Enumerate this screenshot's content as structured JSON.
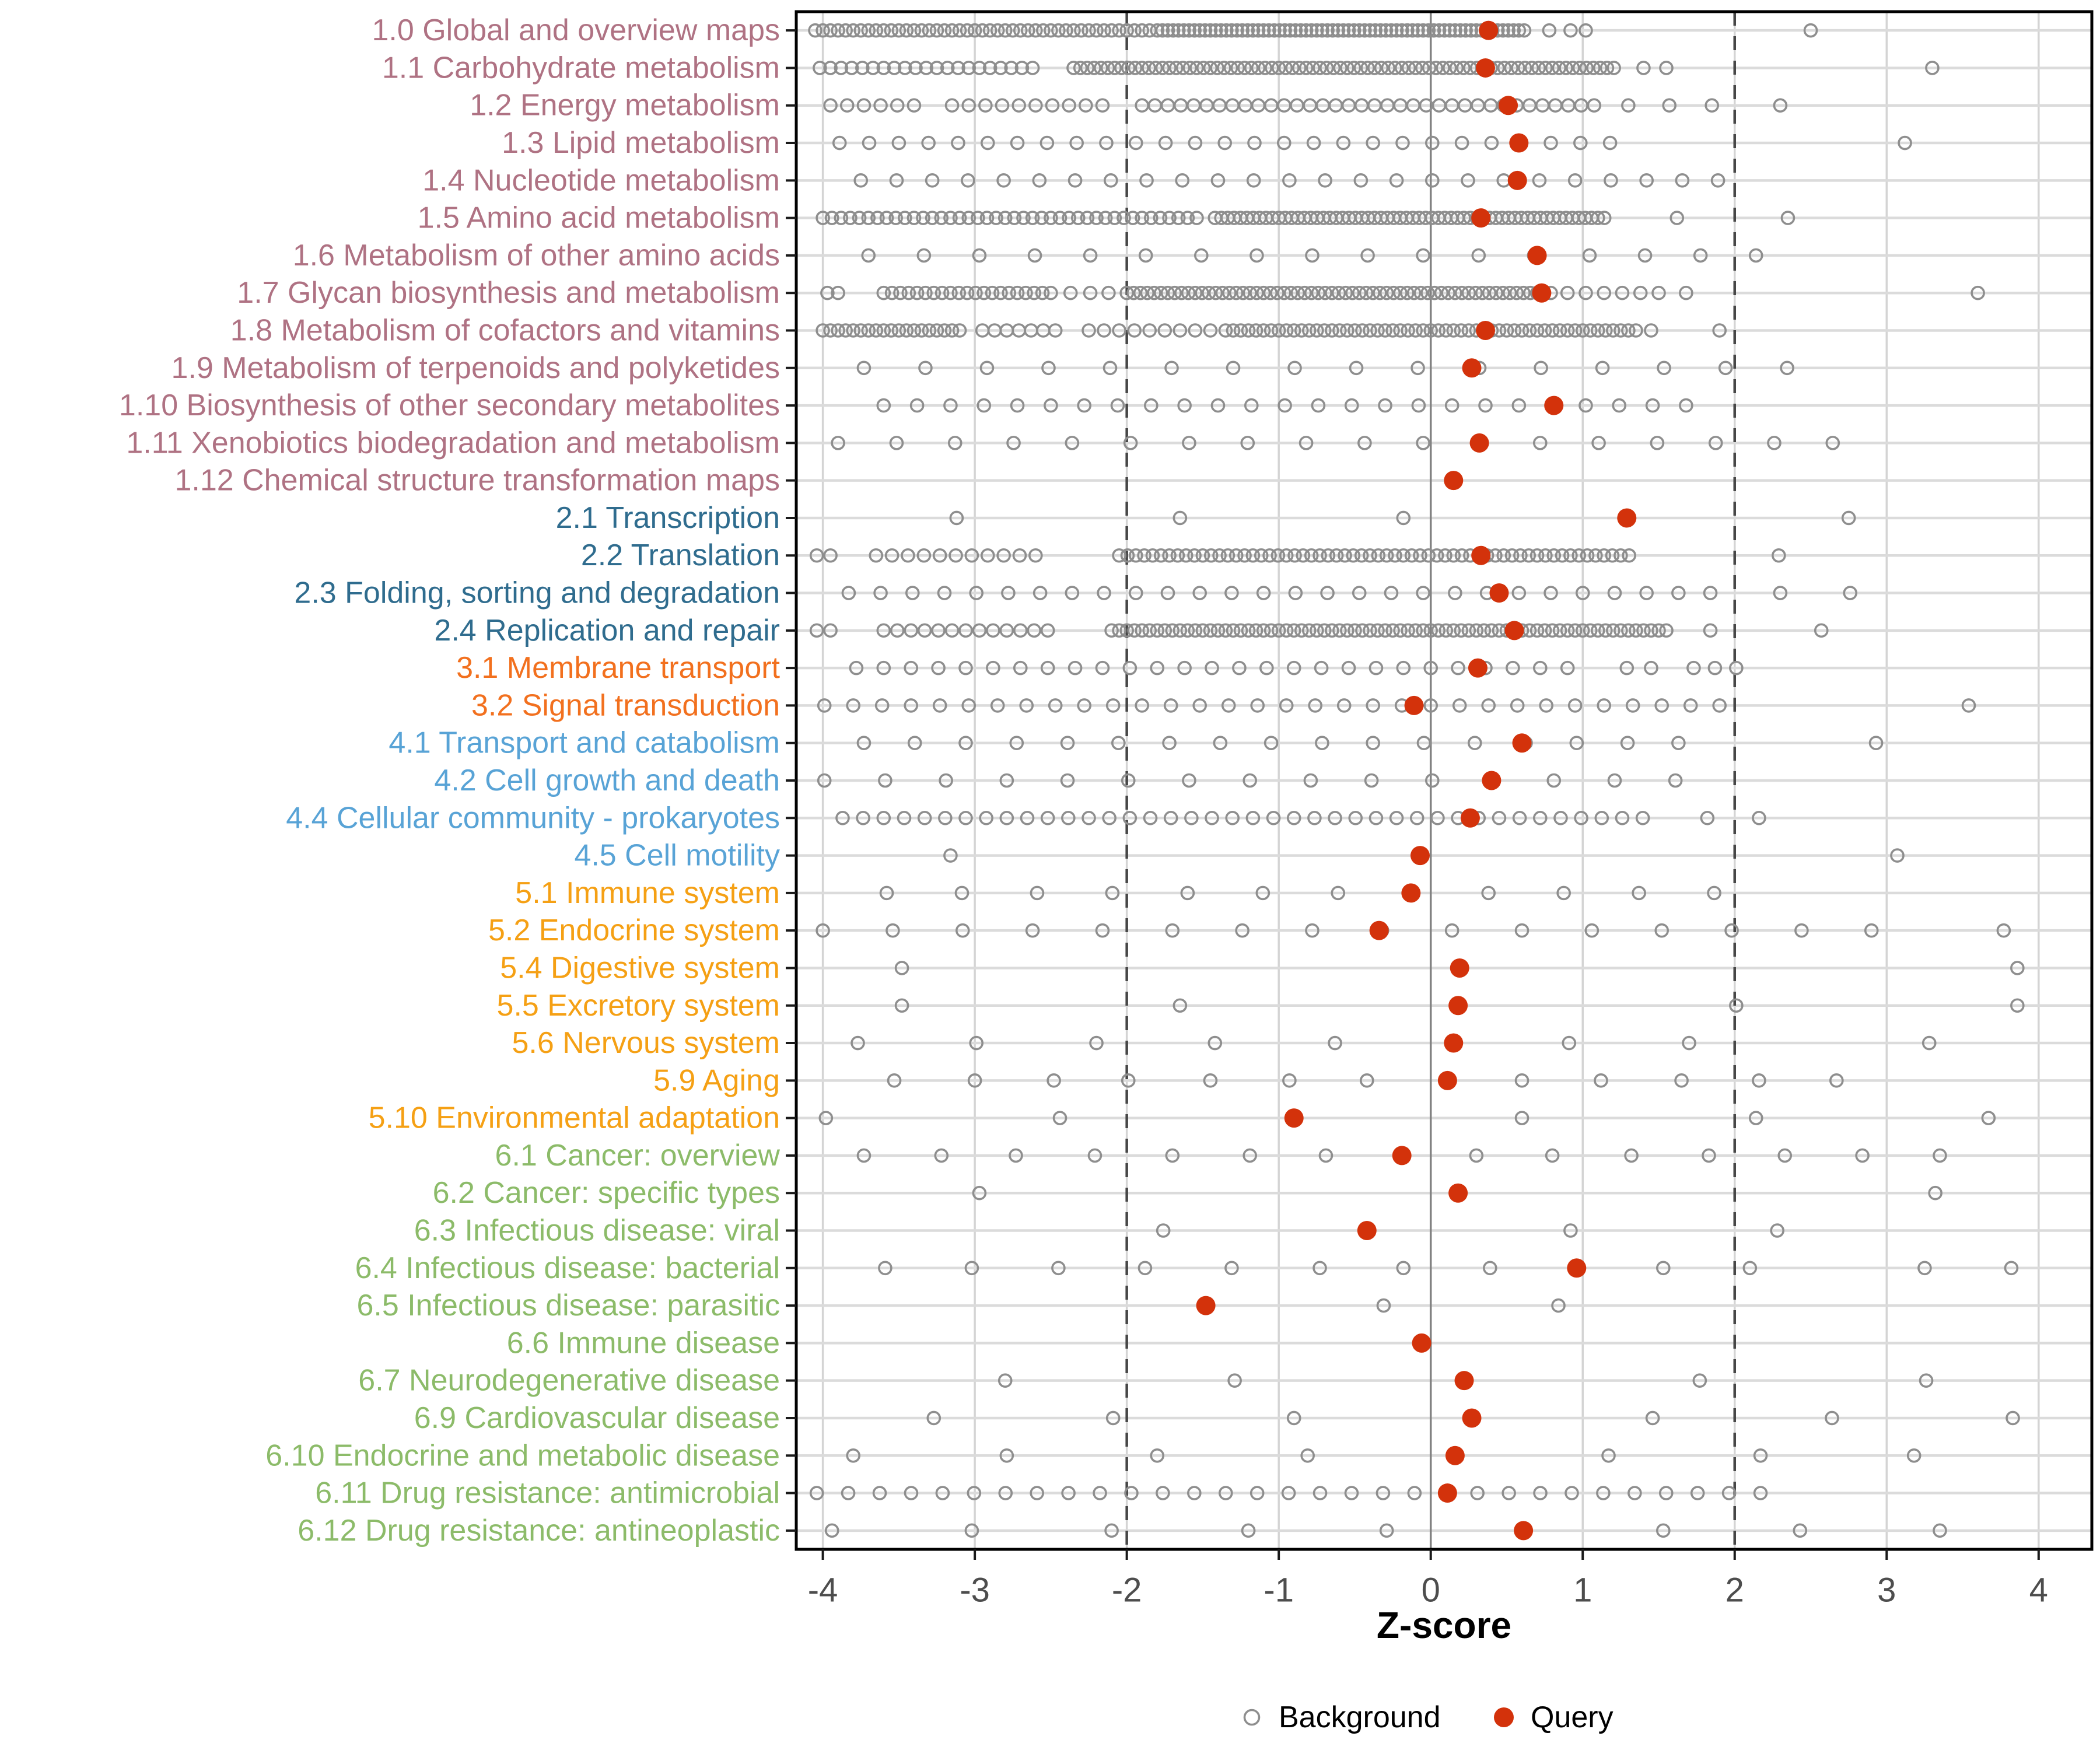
{
  "chart_data": {
    "type": "scatter",
    "title": "",
    "xlabel": "Z-score",
    "ylabel": "",
    "x_ticks": [
      -4,
      -3,
      -2,
      -1,
      0,
      1,
      2,
      3,
      4
    ],
    "xlim": [
      -4.175,
      4.35
    ],
    "zero_line": 0,
    "dashed_reference_lines": [
      -2,
      2
    ],
    "grid": true,
    "legend_position": "bottom",
    "legend": [
      {
        "label": "Background",
        "marker": "open-circle",
        "color": "#8E8E8E"
      },
      {
        "label": "Query",
        "marker": "filled-circle",
        "color": "#D3320B"
      }
    ],
    "point_colors": {
      "background": "#8E8E8E",
      "query": "#D3320B"
    },
    "category_colors": {
      "1": "#AF7283",
      "2": "#2F6C8E",
      "3": "#F2701E",
      "4": "#58A3D6",
      "5": "#F5A014",
      "6": "#8CBB69"
    },
    "rows": [
      {
        "label": "1.0 Global and overview maps",
        "color": "#AF7283",
        "query": 0.38,
        "bg_bands": [
          [
            -4.05,
            -1.85,
            0.05
          ],
          [
            -1.8,
            0.62,
            0.035
          ]
        ],
        "bg_points": [
          0.78,
          0.92,
          1.02,
          2.5
        ]
      },
      {
        "label": "1.1 Carbohydrate metabolism",
        "color": "#AF7283",
        "query": 0.36,
        "bg_bands": [
          [
            -4.02,
            -2.6,
            0.07
          ],
          [
            -2.35,
            1.22,
            0.045
          ]
        ],
        "bg_points": [
          1.4,
          1.55,
          3.3
        ]
      },
      {
        "label": "1.2 Energy metabolism",
        "color": "#AF7283",
        "query": 0.51,
        "bg_bands": [
          [
            -3.95,
            -3.4,
            0.11
          ],
          [
            -3.15,
            -2.1,
            0.11
          ],
          [
            -1.9,
            1.1,
            0.085
          ]
        ],
        "bg_points": [
          1.3,
          1.57,
          1.85,
          2.3
        ]
      },
      {
        "label": "1.3 Lipid metabolism",
        "color": "#AF7283",
        "query": 0.58,
        "bg_bands": [
          [
            -3.89,
            1.35,
            0.195
          ]
        ],
        "bg_points": [
          3.12
        ]
      },
      {
        "label": "1.4 Nucleotide metabolism",
        "color": "#AF7283",
        "query": 0.57,
        "bg_bands": [
          [
            -3.75,
            1.9,
            0.235
          ]
        ],
        "bg_points": []
      },
      {
        "label": "1.5 Amino acid metabolism",
        "color": "#AF7283",
        "query": 0.33,
        "bg_bands": [
          [
            -4.0,
            -1.5,
            0.06
          ],
          [
            -1.42,
            1.16,
            0.042
          ]
        ],
        "bg_points": [
          1.62,
          2.35
        ]
      },
      {
        "label": "1.6 Metabolism of other amino acids",
        "color": "#AF7283",
        "query": 0.7,
        "bg_bands": [
          [
            -3.7,
            2.5,
            0.365
          ]
        ],
        "bg_points": []
      },
      {
        "label": "1.7 Glycan biosynthesis and metabolism",
        "color": "#AF7283",
        "query": 0.73,
        "bg_bands": [
          [
            -3.6,
            -2.5,
            0.055
          ],
          [
            -2.0,
            0.8,
            0.045
          ],
          [
            0.9,
            1.5,
            0.12
          ]
        ],
        "bg_points": [
          -3.97,
          -3.9,
          -2.37,
          -2.24,
          -2.12,
          1.68,
          3.6
        ]
      },
      {
        "label": "1.8 Metabolism of cofactors and vitamins",
        "color": "#AF7283",
        "query": 0.36,
        "bg_bands": [
          [
            -4.0,
            -3.1,
            0.05
          ],
          [
            -2.95,
            -2.4,
            0.08
          ],
          [
            -2.25,
            -1.45,
            0.1
          ],
          [
            -1.35,
            1.35,
            0.05
          ]
        ],
        "bg_points": [
          1.45,
          1.9
        ]
      },
      {
        "label": "1.9 Metabolism of terpenoids and polyketides",
        "color": "#AF7283",
        "query": 0.27,
        "bg_bands": [
          [
            -3.73,
            2.62,
            0.405
          ]
        ],
        "bg_points": []
      },
      {
        "label": "1.10 Biosynthesis of other secondary metabolites",
        "color": "#AF7283",
        "query": 0.81,
        "bg_bands": [
          [
            -3.6,
            1.7,
            0.22
          ]
        ],
        "bg_points": []
      },
      {
        "label": "1.11 Xenobiotics biodegradation and metabolism",
        "color": "#AF7283",
        "query": 0.32,
        "bg_bands": [
          [
            -3.9,
            3.0,
            0.385
          ]
        ],
        "bg_points": []
      },
      {
        "label": "1.12 Chemical structure transformation maps",
        "color": "#AF7283",
        "query": 0.15,
        "bg_bands": [],
        "bg_points": []
      },
      {
        "label": "2.1 Transcription",
        "color": "#2F6C8E",
        "query": 1.29,
        "bg_bands": [],
        "bg_points": [
          -3.12,
          -1.65,
          -0.18,
          2.75
        ]
      },
      {
        "label": "2.2 Translation",
        "color": "#2F6C8E",
        "query": 0.33,
        "bg_bands": [
          [
            -3.65,
            -2.5,
            0.105
          ],
          [
            -2.05,
            1.32,
            0.055
          ]
        ],
        "bg_points": [
          -4.04,
          -3.95,
          2.29
        ]
      },
      {
        "label": "2.3 Folding, sorting and degradation",
        "color": "#2F6C8E",
        "query": 0.45,
        "bg_bands": [
          [
            -3.83,
            1.87,
            0.21
          ]
        ],
        "bg_points": [
          2.3,
          2.76
        ]
      },
      {
        "label": "2.4 Replication and repair",
        "color": "#2F6C8E",
        "query": 0.55,
        "bg_bands": [
          [
            -3.6,
            -2.45,
            0.09
          ],
          [
            -2.1,
            1.58,
            0.05
          ]
        ],
        "bg_points": [
          -4.04,
          -3.95,
          1.84,
          2.57
        ]
      },
      {
        "label": "3.1 Membrane transport",
        "color": "#F2701E",
        "query": 0.31,
        "bg_bands": [
          [
            -3.78,
            1.01,
            0.18
          ]
        ],
        "bg_points": [
          1.29,
          1.45,
          1.73,
          1.87,
          2.01
        ]
      },
      {
        "label": "3.2 Signal transduction",
        "color": "#F2701E",
        "query": -0.11,
        "bg_bands": [
          [
            -3.99,
            1.9,
            0.19
          ]
        ],
        "bg_points": [
          3.54
        ]
      },
      {
        "label": "4.1 Transport and catabolism",
        "color": "#58A3D6",
        "query": 0.6,
        "bg_bands": [
          [
            -3.73,
            1.9,
            0.335
          ]
        ],
        "bg_points": [
          2.93
        ]
      },
      {
        "label": "4.2 Cell growth and death",
        "color": "#58A3D6",
        "query": 0.4,
        "bg_bands": [
          [
            -3.99,
            2.0,
            0.4
          ]
        ],
        "bg_points": []
      },
      {
        "label": "4.4 Cellular community - prokaryotes",
        "color": "#58A3D6",
        "query": 0.26,
        "bg_bands": [
          [
            -3.87,
            1.5,
            0.135
          ]
        ],
        "bg_points": [
          1.82,
          2.16
        ]
      },
      {
        "label": "4.5 Cell motility",
        "color": "#58A3D6",
        "query": -0.07,
        "bg_bands": [],
        "bg_points": [
          -3.16,
          3.07
        ]
      },
      {
        "label": "5.1 Immune system",
        "color": "#F5A014",
        "query": -0.13,
        "bg_bands": [
          [
            -3.58,
            2.35,
            0.495
          ]
        ],
        "bg_points": []
      },
      {
        "label": "5.2 Endocrine system",
        "color": "#F5A014",
        "query": -0.34,
        "bg_bands": [
          [
            -4.0,
            2.9,
            0.46
          ]
        ],
        "bg_points": [
          3.77
        ]
      },
      {
        "label": "5.4 Digestive system",
        "color": "#F5A014",
        "query": 0.19,
        "bg_bands": [],
        "bg_points": [
          -3.48,
          3.86
        ]
      },
      {
        "label": "5.5 Excretory system",
        "color": "#F5A014",
        "query": 0.18,
        "bg_bands": [],
        "bg_points": [
          -3.48,
          -1.65,
          2.01,
          3.86
        ]
      },
      {
        "label": "5.6 Nervous system",
        "color": "#F5A014",
        "query": 0.15,
        "bg_bands": [],
        "bg_points": [
          -3.77,
          -2.99,
          -2.2,
          -1.42,
          -0.63,
          0.91,
          1.7,
          3.28
        ]
      },
      {
        "label": "5.9 Aging",
        "color": "#F5A014",
        "query": 0.11,
        "bg_bands": [],
        "bg_points": [
          -3.53,
          -3.0,
          -2.48,
          -1.99,
          -1.45,
          -0.93,
          -0.42,
          0.6,
          1.12,
          1.65,
          2.16,
          2.67
        ]
      },
      {
        "label": "5.10 Environmental adaptation",
        "color": "#F5A014",
        "query": -0.9,
        "bg_bands": [],
        "bg_points": [
          -3.98,
          -2.44,
          0.6,
          2.14,
          3.67
        ]
      },
      {
        "label": "6.1 Cancer: overview",
        "color": "#8CBB69",
        "query": -0.19,
        "bg_bands": [],
        "bg_points": [
          -3.73,
          -3.22,
          -2.73,
          -2.21,
          -1.7,
          -1.19,
          -0.69,
          0.3,
          0.8,
          1.32,
          1.83,
          2.33,
          2.84,
          3.35
        ]
      },
      {
        "label": "6.2 Cancer: specific types",
        "color": "#8CBB69",
        "query": 0.18,
        "bg_bands": [],
        "bg_points": [
          -2.97,
          3.32
        ]
      },
      {
        "label": "6.3 Infectious disease: viral",
        "color": "#8CBB69",
        "query": -0.42,
        "bg_bands": [],
        "bg_points": [
          -1.76,
          0.92,
          2.28
        ]
      },
      {
        "label": "6.4 Infectious disease: bacterial",
        "color": "#8CBB69",
        "query": 0.96,
        "bg_bands": [],
        "bg_points": [
          -3.59,
          -3.02,
          -2.45,
          -1.88,
          -1.31,
          -0.73,
          -0.18,
          0.39,
          1.53,
          2.1,
          3.25,
          3.82
        ]
      },
      {
        "label": "6.5 Infectious disease: parasitic",
        "color": "#8CBB69",
        "query": -1.48,
        "bg_bands": [],
        "bg_points": [
          -0.31,
          0.84
        ]
      },
      {
        "label": "6.6 Immune disease",
        "color": "#8CBB69",
        "query": -0.06,
        "bg_bands": [],
        "bg_points": []
      },
      {
        "label": "6.7 Neurodegenerative disease",
        "color": "#8CBB69",
        "query": 0.22,
        "bg_bands": [],
        "bg_points": [
          -2.8,
          -1.29,
          1.77,
          3.26
        ]
      },
      {
        "label": "6.9 Cardiovascular disease",
        "color": "#8CBB69",
        "query": 0.27,
        "bg_bands": [],
        "bg_points": [
          -3.27,
          -2.09,
          -0.9,
          1.46,
          2.64,
          3.83
        ]
      },
      {
        "label": "6.10 Endocrine and metabolic disease",
        "color": "#8CBB69",
        "query": 0.16,
        "bg_bands": [],
        "bg_points": [
          -3.8,
          -2.79,
          -1.8,
          -0.81,
          1.17,
          2.17,
          3.18
        ]
      },
      {
        "label": "6.11 Drug resistance: antimicrobial",
        "color": "#8CBB69",
        "query": 0.11,
        "bg_bands": [
          [
            -4.04,
            2.18,
            0.207
          ]
        ],
        "bg_points": []
      },
      {
        "label": "6.12 Drug resistance: antineoplastic",
        "color": "#8CBB69",
        "query": 0.61,
        "bg_bands": [],
        "bg_points": [
          -3.94,
          -3.02,
          -2.1,
          -1.2,
          -0.29,
          1.53,
          2.43,
          3.35
        ]
      }
    ]
  }
}
